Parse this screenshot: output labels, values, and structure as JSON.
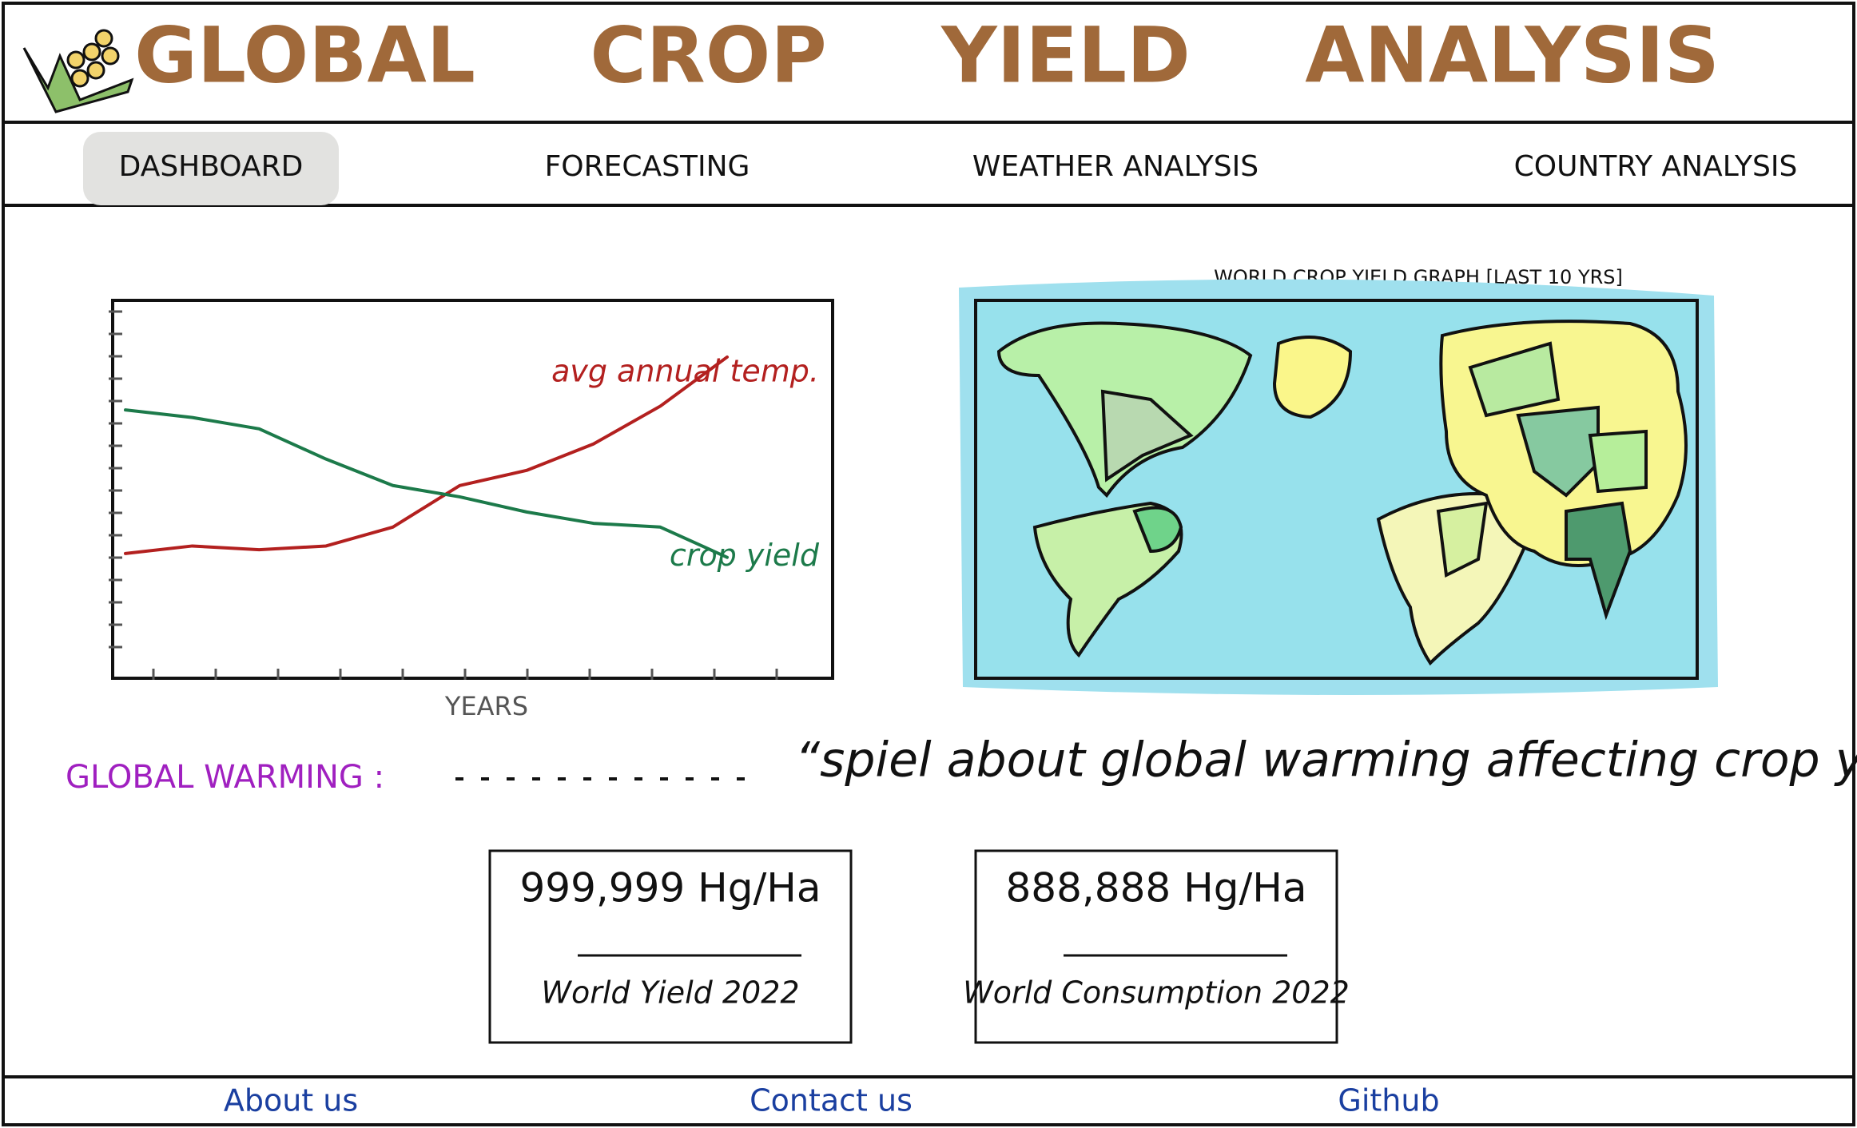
{
  "header": {
    "title": "GLOBAL CROP YIELD ANALYSIS"
  },
  "nav": [
    "DASHBOARD",
    "FORECASTING",
    "WEATHER ANALYSIS",
    "COUNTRY ANALYSIS"
  ],
  "chart_data": {
    "type": "line",
    "x_label": "YEARS",
    "ylim": [
      0,
      100
    ],
    "series": [
      {
        "name": "avg annual temp.",
        "color": "#b3201f",
        "values": [
          33,
          35,
          34,
          35,
          40,
          51,
          55,
          62,
          72,
          85
        ]
      },
      {
        "name": "crop yield",
        "color": "#1c7a4a",
        "values": [
          71,
          69,
          66,
          58,
          51,
          48,
          44,
          41,
          40,
          32
        ]
      }
    ]
  },
  "map": {
    "title": "WORLD CROP YIELD GRAPH [LAST 10 YRS]"
  },
  "global_warming": {
    "label": "GLOBAL WARMING :",
    "text": "“spiel about global warming affecting crop yield”..."
  },
  "stats": [
    {
      "value": "999,999 Hg/Ha",
      "label": "World Yield 2022"
    },
    {
      "value": "888,888 Hg/Ha",
      "label": "World Consumption 2022"
    }
  ],
  "footer": [
    "About us",
    "Contact us",
    "Github"
  ]
}
